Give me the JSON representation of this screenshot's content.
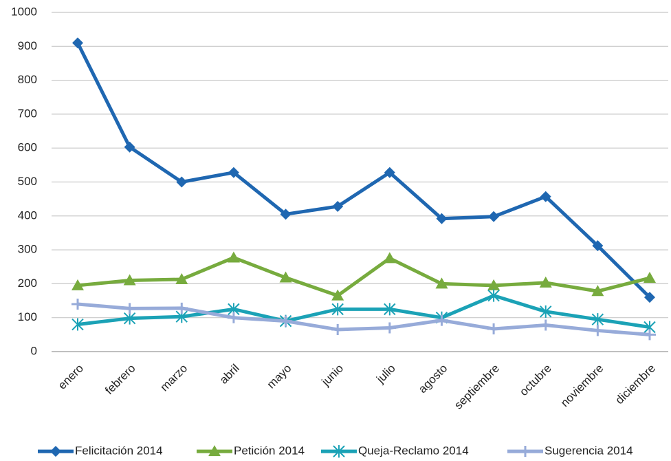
{
  "chart_data": {
    "type": "line",
    "categories": [
      "enero",
      "febrero",
      "marzo",
      "abril",
      "mayo",
      "junio",
      "julio",
      "agosto",
      "septiembre",
      "octubre",
      "noviembre",
      "diciembre"
    ],
    "series": [
      {
        "name": "Felicitación 2014",
        "color": "#1f67b1",
        "marker": "diamond",
        "values": [
          910,
          603,
          500,
          528,
          405,
          428,
          528,
          392,
          398,
          457,
          312,
          160
        ]
      },
      {
        "name": "Petición 2014",
        "color": "#77ab3e",
        "marker": "triangle",
        "values": [
          195,
          210,
          213,
          277,
          218,
          165,
          275,
          200,
          195,
          203,
          178,
          217
        ]
      },
      {
        "name": "Queja-Reclamo 2014",
        "color": "#1ba2b6",
        "marker": "asterisk",
        "values": [
          80,
          98,
          103,
          125,
          90,
          125,
          125,
          100,
          165,
          118,
          95,
          72
        ]
      },
      {
        "name": "Sugerencia 2014",
        "color": "#97abd9",
        "marker": "plus",
        "values": [
          140,
          127,
          128,
          100,
          90,
          65,
          70,
          92,
          67,
          78,
          62,
          50
        ]
      }
    ],
    "ylim": [
      0,
      1000
    ],
    "yticks": [
      0,
      100,
      200,
      300,
      400,
      500,
      600,
      700,
      800,
      900,
      1000
    ],
    "grid": true,
    "legend": "bottom"
  }
}
